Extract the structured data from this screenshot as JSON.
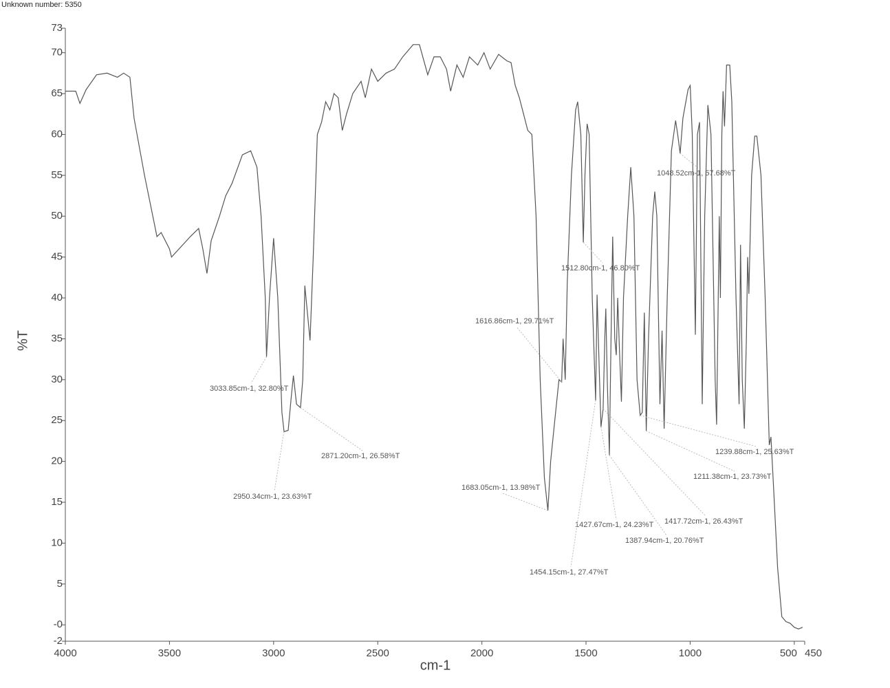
{
  "chart_data": {
    "type": "line",
    "header": "Unknown number: 5350",
    "xlabel": "cm-1",
    "ylabel": "%T",
    "xlim": [
      4000,
      450
    ],
    "ylim": [
      -2,
      73
    ],
    "xticks": [
      4000,
      3500,
      3000,
      2500,
      2000,
      1500,
      1000,
      500,
      450
    ],
    "yticks": [
      73,
      70,
      65,
      60,
      55,
      50,
      45,
      40,
      35,
      30,
      25,
      20,
      15,
      10,
      5,
      {
        "value": 0,
        "label": "-0"
      },
      -2
    ],
    "series": [
      {
        "color": "#555555",
        "x": [
          4000,
          3950,
          3930,
          3900,
          3850,
          3800,
          3750,
          3720,
          3690,
          3670,
          3620,
          3580,
          3560,
          3540,
          3500,
          3490,
          3400,
          3360,
          3340,
          3320,
          3300,
          3260,
          3230,
          3200,
          3150,
          3110,
          3080,
          3060,
          3040,
          3034,
          3020,
          3000,
          2980,
          2960,
          2950,
          2930,
          2915,
          2905,
          2890,
          2871,
          2860,
          2850,
          2825,
          2810,
          2790,
          2770,
          2750,
          2730,
          2710,
          2690,
          2670,
          2650,
          2620,
          2580,
          2560,
          2530,
          2500,
          2460,
          2420,
          2380,
          2330,
          2300,
          2260,
          2230,
          2200,
          2170,
          2150,
          2120,
          2090,
          2060,
          2020,
          1990,
          1960,
          1920,
          1880,
          1860,
          1840,
          1820,
          1800,
          1780,
          1760,
          1740,
          1720,
          1700,
          1683,
          1670,
          1650,
          1630,
          1617,
          1610,
          1600,
          1590,
          1570,
          1550,
          1540,
          1525,
          1513,
          1505,
          1495,
          1485,
          1470,
          1454,
          1447,
          1435,
          1428,
          1418,
          1410,
          1405,
          1398,
          1388,
          1380,
          1372,
          1362,
          1355,
          1348,
          1340,
          1330,
          1320,
          1300,
          1285,
          1270,
          1255,
          1240,
          1230,
          1220,
          1211,
          1200,
          1180,
          1170,
          1160,
          1145,
          1135,
          1125,
          1110,
          1090,
          1070,
          1060,
          1048,
          1035,
          1010,
          1000,
          990,
          975,
          965,
          955,
          942,
          930,
          915,
          900,
          880,
          873,
          860,
          855,
          848,
          842,
          835,
          825,
          810,
          800,
          780,
          765,
          758,
          750,
          740,
          730,
          724,
          718,
          705,
          690,
          680,
          660,
          640,
          620,
          612,
          600,
          580,
          560,
          540,
          520,
          500,
          480,
          460
        ],
        "values": [
          65.3,
          65.3,
          63.8,
          65.5,
          67.3,
          67.5,
          67,
          67.5,
          67,
          62,
          55,
          50,
          47.5,
          48,
          46,
          45,
          47.5,
          48.5,
          46,
          43,
          47,
          50,
          52.5,
          54,
          57.5,
          58,
          56,
          50,
          40,
          32.8,
          40,
          47.3,
          40,
          26,
          23.63,
          23.8,
          28,
          30.5,
          27,
          26.58,
          30,
          41.5,
          34.8,
          45,
          60,
          61.5,
          64,
          63,
          65,
          64.5,
          60.5,
          62.5,
          65,
          66.5,
          64.5,
          68,
          66.5,
          67.5,
          68,
          69.5,
          71,
          71,
          67.3,
          69.5,
          69.5,
          68,
          65.3,
          68.5,
          67,
          69.5,
          68.5,
          70,
          68,
          69.8,
          69,
          68.8,
          66,
          64.5,
          62.5,
          60.5,
          60,
          50,
          30,
          18,
          13.98,
          20,
          25,
          30,
          29.71,
          35,
          30,
          42,
          55,
          63,
          64,
          60,
          46.8,
          55,
          61.3,
          60,
          40,
          27.47,
          40.4,
          30,
          24.23,
          26.43,
          35,
          38.7,
          30,
          20.76,
          35,
          47.5,
          35,
          33,
          40,
          34,
          27.3,
          40,
          50,
          56,
          50,
          30,
          25.63,
          26,
          38.2,
          23.73,
          35,
          50,
          53,
          50,
          27,
          36,
          24,
          40,
          58,
          61.7,
          60,
          57.68,
          62,
          65.5,
          66,
          60,
          35.5,
          60,
          61.5,
          27,
          50,
          63.6,
          60,
          30,
          24.5,
          50,
          40,
          60,
          65.3,
          61,
          68.5,
          68.5,
          64,
          40,
          27,
          46.5,
          30,
          24,
          35,
          45,
          40.5,
          55,
          59.8,
          59.8,
          55,
          40,
          22,
          23,
          17,
          7,
          1,
          0.4,
          0.2,
          -0.3,
          -0.5,
          -0.3
        ]
      }
    ],
    "annotations": [
      {
        "text": "3033.85cm-1, 32.80%T",
        "x": 3033.85,
        "y": 32.8
      },
      {
        "text": "2871.20cm-1, 26.58%T",
        "x": 2871.2,
        "y": 26.58
      },
      {
        "text": "2950.34cm-1, 23.63%T",
        "x": 2950.34,
        "y": 23.63
      },
      {
        "text": "1048.52cm-1, 57.68%T",
        "x": 1048.52,
        "y": 57.68
      },
      {
        "text": "1512.80cm-1, 46.80%T",
        "x": 1512.8,
        "y": 46.8
      },
      {
        "text": "1616.86cm-1, 29.71%T",
        "x": 1616.86,
        "y": 29.71
      },
      {
        "text": "1683.05cm-1, 13.98%T",
        "x": 1683.05,
        "y": 13.98
      },
      {
        "text": "1239.88cm-1, 25.63%T",
        "x": 1239.88,
        "y": 25.63
      },
      {
        "text": "1211.38cm-1, 23.73%T",
        "x": 1211.38,
        "y": 23.73
      },
      {
        "text": "1417.72cm-1, 26.43%T",
        "x": 1417.72,
        "y": 26.43
      },
      {
        "text": "1427.67cm-1, 24.23%T",
        "x": 1427.67,
        "y": 24.23
      },
      {
        "text": "1387.94cm-1, 20.76%T",
        "x": 1387.94,
        "y": 20.76
      },
      {
        "text": "1454.15cm-1, 27.47%T",
        "x": 1454.15,
        "y": 27.47
      }
    ]
  }
}
